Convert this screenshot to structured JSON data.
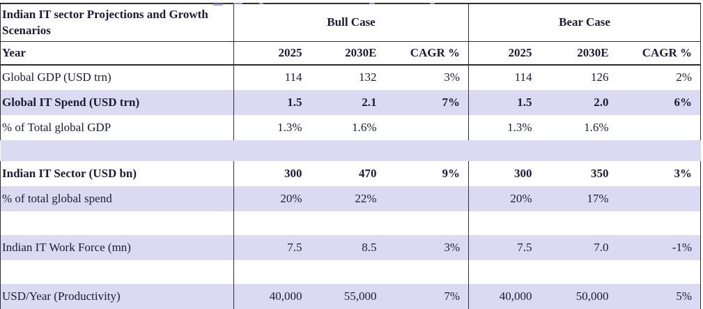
{
  "table": {
    "title": "Indian IT sector Projections and Growth Scenarios",
    "year_label": "Year",
    "groups": [
      {
        "label": "Bull Case"
      },
      {
        "label": "Bear Case"
      }
    ],
    "year_columns": [
      "2025",
      "2030E",
      "CAGR %"
    ],
    "rows": [
      {
        "label": "Global GDP (USD trn)",
        "bold": false,
        "bg": "white",
        "bull": [
          "114",
          "132",
          "3%"
        ],
        "bear": [
          "114",
          "126",
          "2%"
        ]
      },
      {
        "label": "Global IT Spend (USD trn)",
        "bold": true,
        "bg": "lavender",
        "bull": [
          "1.5",
          "2.1",
          "7%"
        ],
        "bear": [
          "1.5",
          "2.0",
          "6%"
        ]
      },
      {
        "label": "% of Total global GDP",
        "bold": false,
        "bg": "white",
        "bull": [
          "1.3%",
          "1.6%",
          ""
        ],
        "bear": [
          "1.3%",
          "1.6%",
          ""
        ]
      },
      {
        "type": "spacer",
        "bg": "lavender"
      },
      {
        "label": "Indian IT Sector (USD bn)",
        "bold": true,
        "bg": "white",
        "bull": [
          "300",
          "470",
          "9%"
        ],
        "bear": [
          "300",
          "350",
          "3%"
        ]
      },
      {
        "label": "% of total global spend",
        "bold": false,
        "bg": "lavender",
        "bull": [
          "20%",
          "22%",
          ""
        ],
        "bear": [
          "20%",
          "17%",
          ""
        ]
      },
      {
        "type": "spacer",
        "bg": "white"
      },
      {
        "label": "Indian IT Work Force (mn)",
        "bold": false,
        "bg": "lavender",
        "bull": [
          "7.5",
          "8.5",
          "3%"
        ],
        "bear": [
          "7.5",
          "7.0",
          "-1%"
        ]
      },
      {
        "type": "spacer",
        "bg": "white"
      },
      {
        "label": "USD/Year (Productivity)",
        "bold": false,
        "bg": "lavender",
        "bull": [
          "40,000",
          "55,000",
          "7%"
        ],
        "bear": [
          "40,000",
          "50,000",
          "5%"
        ]
      }
    ],
    "colors": {
      "row_highlight": "#dcdaf2",
      "border": "#2e2e2e",
      "text": "#1c1a38",
      "clipped_fragment_blue": "#8a8fd8"
    }
  }
}
